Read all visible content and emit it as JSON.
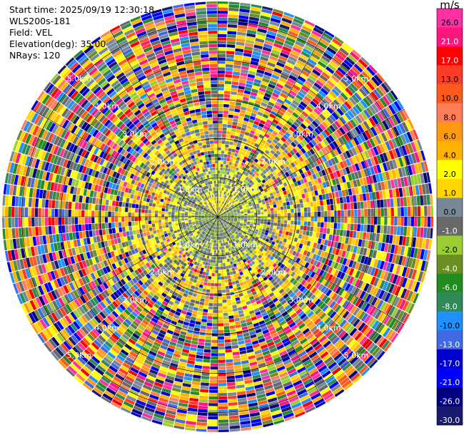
{
  "header": {
    "start_time": "Start time: 2025/09/19 12:30:18",
    "instrument": "WLS200s-181",
    "field": "Field: VEL",
    "elevation": "Elevation(deg): 35.00",
    "nrays": "NRays: 120"
  },
  "colorbar": {
    "title": "m/s",
    "bins": [
      {
        "label": "26.0",
        "color": "#ff2fa4"
      },
      {
        "label": "21.0",
        "color": "#ff1480"
      },
      {
        "label": "17.0",
        "color": "#ff0000"
      },
      {
        "label": "13.0",
        "color": "#ff3c28"
      },
      {
        "label": "10.0",
        "color": "#ff5a1e"
      },
      {
        "label": "8.0",
        "color": "#ff7e59"
      },
      {
        "label": "6.0",
        "color": "#ff9914"
      },
      {
        "label": "4.0",
        "color": "#ffb200"
      },
      {
        "label": "2.0",
        "color": "#ffff00"
      },
      {
        "label": "1.0",
        "color": "#ffd700"
      },
      {
        "label": "0.0",
        "color": "#778899"
      },
      {
        "label": "-1.0",
        "color": "#696969"
      },
      {
        "label": "-2.0",
        "color": "#9acd32"
      },
      {
        "label": "-4.0",
        "color": "#6b8e23"
      },
      {
        "label": "-6.0",
        "color": "#228b22"
      },
      {
        "label": "-8.0",
        "color": "#2e8b57"
      },
      {
        "label": "-10.0",
        "color": "#1e90ff"
      },
      {
        "label": "-13.0",
        "color": "#4169e1"
      },
      {
        "label": "-17.0",
        "color": "#0000cd"
      },
      {
        "label": "-21.0",
        "color": "#0000ff"
      },
      {
        "label": "-26.0",
        "color": "#000080"
      },
      {
        "label": "-30.0",
        "color": "#191970"
      }
    ]
  },
  "chart_data": {
    "type": "heatmap",
    "projection": "polar (PPI)",
    "field": "VEL",
    "units": "m/s",
    "nrays": 120,
    "range_rings_km": [
      1.0,
      2.0,
      3.0,
      4.0,
      5.0
    ],
    "ring_labels": [
      "1.0km",
      "2.0km",
      "3.0km",
      "4.0km",
      "5.0km"
    ],
    "max_range_km": 5.5,
    "spokes_deg": [
      0,
      30,
      60,
      90,
      120,
      150,
      180,
      210,
      240,
      270,
      300,
      330
    ],
    "pattern": {
      "inner_km": {
        "range": [
          0.0,
          1.2
        ],
        "dominant": [
          "-2.0",
          "-1.0",
          "0.0"
        ]
      },
      "mid_km": {
        "range": [
          1.2,
          2.5
        ],
        "dominant": [
          "1.0",
          "2.0",
          "0.0"
        ]
      },
      "outer_km": {
        "range": [
          2.5,
          5.5
        ],
        "dominant": "noise (all bins)"
      }
    }
  }
}
